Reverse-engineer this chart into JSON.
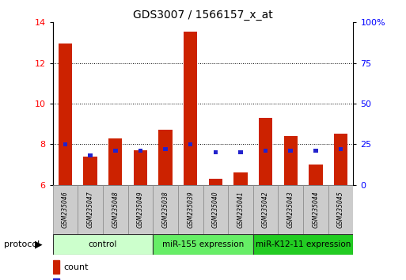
{
  "title": "GDS3007 / 1566157_x_at",
  "samples": [
    "GSM235046",
    "GSM235047",
    "GSM235048",
    "GSM235049",
    "GSM235038",
    "GSM235039",
    "GSM235040",
    "GSM235041",
    "GSM235042",
    "GSM235043",
    "GSM235044",
    "GSM235045"
  ],
  "count_values": [
    12.95,
    7.4,
    8.3,
    7.7,
    8.7,
    13.55,
    6.3,
    6.6,
    9.3,
    8.4,
    7.0,
    8.5
  ],
  "percentile_values": [
    25,
    18,
    21,
    21,
    22,
    25,
    20,
    20,
    21,
    21,
    21,
    22
  ],
  "ylim_left": [
    6,
    14
  ],
  "ylim_right": [
    0,
    100
  ],
  "yticks_left": [
    6,
    8,
    10,
    12,
    14
  ],
  "yticks_right": [
    0,
    25,
    50,
    75,
    100
  ],
  "ytick_labels_right": [
    "0",
    "25",
    "50",
    "75",
    "100%"
  ],
  "groups": [
    {
      "label": "control",
      "indices": [
        0,
        1,
        2,
        3
      ],
      "color": "#ccffcc"
    },
    {
      "label": "miR-155 expression",
      "indices": [
        4,
        5,
        6,
        7
      ],
      "color": "#66ee66"
    },
    {
      "label": "miR-K12-11 expression",
      "indices": [
        8,
        9,
        10,
        11
      ],
      "color": "#22cc22"
    }
  ],
  "bar_color": "#cc2200",
  "percentile_color": "#2222cc",
  "bar_width": 0.55,
  "background_color": "#ffffff",
  "plot_bg_color": "#ffffff",
  "title_fontsize": 10,
  "tick_fontsize": 8,
  "sample_fontsize": 5.5,
  "group_fontsize": 7.5,
  "legend_fontsize": 8
}
